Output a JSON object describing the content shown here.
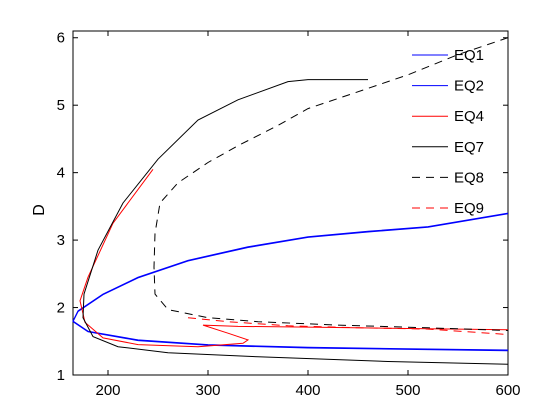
{
  "chart_data": {
    "type": "line",
    "title": "",
    "xlabel": "",
    "ylabel": "D",
    "xlim": [
      165,
      600
    ],
    "ylim": [
      1,
      6.1
    ],
    "xticks": [
      200,
      300,
      400,
      500,
      600
    ],
    "yticks": [
      1,
      2,
      3,
      4,
      5,
      6
    ],
    "grid": false,
    "legend_position": "top-right",
    "series": [
      {
        "name": "EQ1",
        "color": "#0000ff",
        "dash": "",
        "points": [
          [
            600,
            3.4
          ],
          [
            520,
            3.2
          ],
          [
            460,
            3.13
          ],
          [
            400,
            3.05
          ],
          [
            340,
            2.9
          ],
          [
            280,
            2.7
          ],
          [
            230,
            2.45
          ],
          [
            195,
            2.2
          ],
          [
            170,
            1.95
          ],
          [
            165,
            1.8
          ],
          [
            180,
            1.65
          ],
          [
            230,
            1.52
          ],
          [
            300,
            1.45
          ],
          [
            400,
            1.41
          ],
          [
            500,
            1.39
          ],
          [
            600,
            1.37
          ]
        ]
      },
      {
        "name": "EQ2",
        "color": "#0000ff",
        "dash": "",
        "points": [
          [
            600,
            3.39
          ],
          [
            520,
            3.19
          ],
          [
            460,
            3.12
          ],
          [
            400,
            3.04
          ],
          [
            340,
            2.89
          ],
          [
            280,
            2.69
          ],
          [
            230,
            2.44
          ],
          [
            195,
            2.19
          ],
          [
            170,
            1.94
          ],
          [
            165,
            1.79
          ],
          [
            180,
            1.64
          ],
          [
            230,
            1.51
          ],
          [
            300,
            1.44
          ],
          [
            400,
            1.4
          ],
          [
            500,
            1.38
          ],
          [
            600,
            1.36
          ]
        ]
      },
      {
        "name": "EQ4",
        "color": "#ff0000",
        "dash": "",
        "points": [
          [
            245,
            4.05
          ],
          [
            205,
            3.25
          ],
          [
            180,
            2.45
          ],
          [
            172,
            2.1
          ],
          [
            177,
            1.78
          ],
          [
            195,
            1.55
          ],
          [
            230,
            1.45
          ],
          [
            290,
            1.42
          ],
          [
            335,
            1.47
          ],
          [
            340,
            1.52
          ],
          [
            320,
            1.62
          ],
          [
            295,
            1.74
          ],
          [
            330,
            1.72
          ],
          [
            400,
            1.71
          ],
          [
            500,
            1.69
          ],
          [
            600,
            1.67
          ]
        ]
      },
      {
        "name": "EQ7",
        "color": "#000000",
        "dash": "",
        "points": [
          [
            460,
            5.38
          ],
          [
            400,
            5.38
          ],
          [
            380,
            5.35
          ],
          [
            330,
            5.08
          ],
          [
            290,
            4.78
          ],
          [
            250,
            4.2
          ],
          [
            215,
            3.55
          ],
          [
            190,
            2.85
          ],
          [
            176,
            2.2
          ],
          [
            175,
            1.85
          ],
          [
            185,
            1.57
          ],
          [
            210,
            1.42
          ],
          [
            260,
            1.33
          ],
          [
            350,
            1.27
          ],
          [
            480,
            1.2
          ],
          [
            600,
            1.16
          ]
        ]
      },
      {
        "name": "EQ8",
        "color": "#000000",
        "dash": "8,6",
        "points": [
          [
            600,
            6.0
          ],
          [
            550,
            5.75
          ],
          [
            500,
            5.45
          ],
          [
            470,
            5.3
          ],
          [
            430,
            5.1
          ],
          [
            400,
            4.95
          ],
          [
            370,
            4.7
          ],
          [
            330,
            4.4
          ],
          [
            300,
            4.15
          ],
          [
            270,
            3.85
          ],
          [
            252,
            3.55
          ],
          [
            247,
            3.1
          ],
          [
            246,
            2.6
          ],
          [
            247,
            2.2
          ],
          [
            260,
            1.97
          ],
          [
            300,
            1.85
          ],
          [
            350,
            1.79
          ],
          [
            430,
            1.74
          ],
          [
            520,
            1.7
          ],
          [
            600,
            1.66
          ]
        ]
      },
      {
        "name": "EQ9",
        "color": "#ff0000",
        "dash": "8,6",
        "points": [
          [
            280,
            1.85
          ],
          [
            320,
            1.79
          ],
          [
            380,
            1.73
          ],
          [
            450,
            1.7
          ],
          [
            520,
            1.68
          ],
          [
            600,
            1.6
          ]
        ]
      }
    ]
  }
}
